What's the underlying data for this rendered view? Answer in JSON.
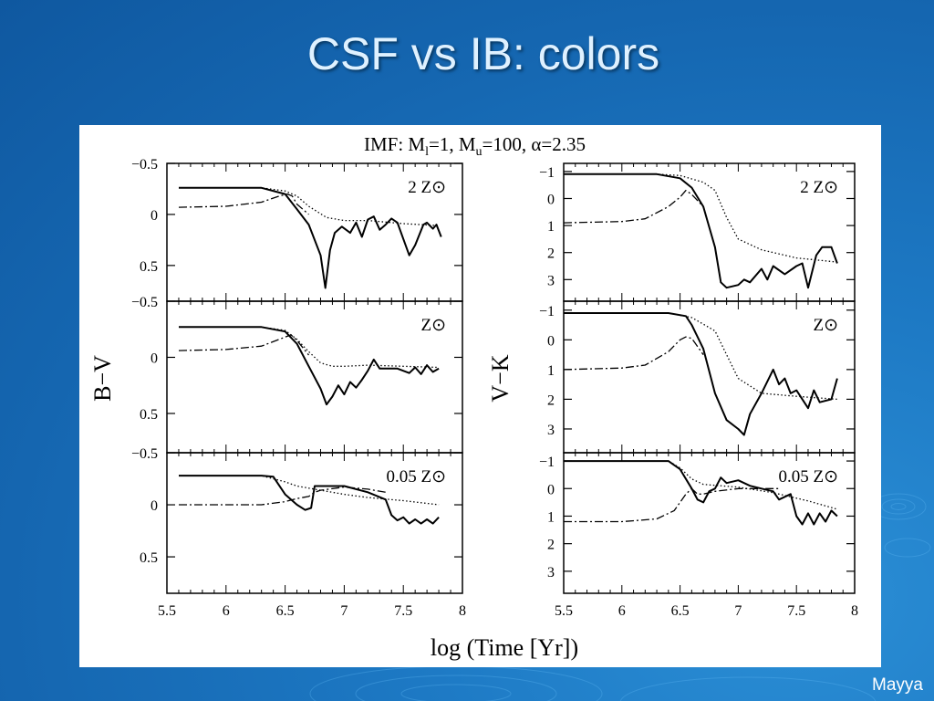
{
  "slide": {
    "title": "CSF vs IB: colors",
    "footer": "Mayya"
  },
  "chart_data": {
    "type": "line",
    "header": "IMF: M",
    "header_sub_l": "l",
    "header_mid": "=1, M",
    "header_sub_u": "u",
    "header_tail": "=100, α=2.35",
    "xlabel": "log (Time [Yr])",
    "x_ticks": [
      "5.5",
      "6",
      "6.5",
      "7",
      "7.5",
      "8"
    ],
    "xlim": [
      5.5,
      8.0
    ],
    "columns": [
      {
        "ylabel": "B−V",
        "ylim": [
          -0.5,
          0.85
        ],
        "y_ticks": [
          "−0.5",
          "0",
          "0.5"
        ],
        "y_tick_values": [
          -0.5,
          0,
          0.5
        ],
        "panels": [
          {
            "label": "2 Z⊙",
            "series": [
              {
                "style": "solid",
                "x": [
                  5.6,
                  6.3,
                  6.5,
                  6.6,
                  6.7,
                  6.8,
                  6.84,
                  6.88,
                  6.92,
                  6.98,
                  7.05,
                  7.1,
                  7.15,
                  7.2,
                  7.25,
                  7.3,
                  7.35,
                  7.4,
                  7.45,
                  7.55,
                  7.6,
                  7.67,
                  7.7,
                  7.75,
                  7.78,
                  7.82
                ],
                "y": [
                  -0.26,
                  -0.26,
                  -0.2,
                  -0.05,
                  0.1,
                  0.4,
                  0.72,
                  0.35,
                  0.18,
                  0.12,
                  0.18,
                  0.08,
                  0.22,
                  0.05,
                  0.02,
                  0.15,
                  0.1,
                  0.04,
                  0.08,
                  0.4,
                  0.3,
                  0.1,
                  0.08,
                  0.14,
                  0.1,
                  0.22
                ]
              },
              {
                "style": "dotted",
                "x": [
                  5.6,
                  6.3,
                  6.5,
                  6.6,
                  6.7,
                  6.85,
                  7.0,
                  7.2,
                  7.5,
                  7.8
                ],
                "y": [
                  -0.26,
                  -0.26,
                  -0.23,
                  -0.18,
                  -0.08,
                  0.03,
                  0.06,
                  0.06,
                  0.09,
                  0.11
                ]
              },
              {
                "style": "dashdot",
                "x": [
                  5.6,
                  6.0,
                  6.3,
                  6.45,
                  6.52,
                  6.56,
                  6.6,
                  6.7
                ],
                "y": [
                  -0.07,
                  -0.08,
                  -0.12,
                  -0.18,
                  -0.2,
                  -0.18,
                  -0.1,
                  0.0
                ]
              }
            ]
          },
          {
            "label": "Z⊙",
            "series": [
              {
                "style": "solid",
                "x": [
                  5.6,
                  6.3,
                  6.5,
                  6.6,
                  6.7,
                  6.8,
                  6.85,
                  6.9,
                  6.95,
                  7.0,
                  7.05,
                  7.1,
                  7.15,
                  7.2,
                  7.25,
                  7.3,
                  7.35,
                  7.45,
                  7.55,
                  7.6,
                  7.65,
                  7.7,
                  7.75,
                  7.8
                ],
                "y": [
                  -0.27,
                  -0.27,
                  -0.23,
                  -0.12,
                  0.08,
                  0.28,
                  0.42,
                  0.35,
                  0.25,
                  0.33,
                  0.22,
                  0.27,
                  0.2,
                  0.12,
                  0.02,
                  0.1,
                  0.1,
                  0.1,
                  0.14,
                  0.09,
                  0.15,
                  0.07,
                  0.13,
                  0.1
                ]
              },
              {
                "style": "dotted",
                "x": [
                  5.6,
                  6.3,
                  6.5,
                  6.6,
                  6.7,
                  6.8,
                  6.9,
                  7.0,
                  7.2,
                  7.5,
                  7.8
                ],
                "y": [
                  -0.27,
                  -0.27,
                  -0.24,
                  -0.16,
                  -0.05,
                  0.05,
                  0.08,
                  0.08,
                  0.07,
                  0.08,
                  0.09
                ]
              },
              {
                "style": "dashdot",
                "x": [
                  5.6,
                  6.0,
                  6.3,
                  6.5,
                  6.55,
                  6.6,
                  6.7
                ],
                "y": [
                  -0.06,
                  -0.07,
                  -0.1,
                  -0.18,
                  -0.2,
                  -0.15,
                  -0.02
                ]
              }
            ]
          },
          {
            "label": "0.05 Z⊙",
            "series": [
              {
                "style": "solid",
                "x": [
                  5.6,
                  6.3,
                  6.4,
                  6.5,
                  6.6,
                  6.67,
                  6.72,
                  6.75,
                  6.8,
                  7.0,
                  7.2,
                  7.35,
                  7.4,
                  7.45,
                  7.5,
                  7.55,
                  7.6,
                  7.65,
                  7.7,
                  7.75,
                  7.8
                ],
                "y": [
                  -0.28,
                  -0.28,
                  -0.27,
                  -0.1,
                  0.0,
                  0.05,
                  0.03,
                  -0.18,
                  -0.18,
                  -0.18,
                  -0.12,
                  -0.05,
                  0.1,
                  0.15,
                  0.12,
                  0.18,
                  0.14,
                  0.18,
                  0.14,
                  0.18,
                  0.12
                ]
              },
              {
                "style": "dotted",
                "x": [
                  5.6,
                  6.3,
                  6.5,
                  6.6,
                  6.8,
                  7.0,
                  7.2,
                  7.5,
                  7.8
                ],
                "y": [
                  -0.28,
                  -0.28,
                  -0.22,
                  -0.18,
                  -0.14,
                  -0.1,
                  -0.07,
                  -0.04,
                  0.0
                ]
              },
              {
                "style": "dashdot",
                "x": [
                  5.6,
                  6.3,
                  6.5,
                  6.6,
                  6.7,
                  6.75,
                  6.8,
                  7.0,
                  7.2,
                  7.35
                ],
                "y": [
                  0.0,
                  0.0,
                  -0.03,
                  -0.06,
                  -0.08,
                  -0.12,
                  -0.14,
                  -0.17,
                  -0.15,
                  -0.12
                ]
              }
            ]
          }
        ]
      },
      {
        "ylabel": "V−K",
        "ylim": [
          -1.3,
          3.8
        ],
        "y_ticks": [
          "−1",
          "0",
          "1",
          "2",
          "3"
        ],
        "y_tick_values": [
          -1,
          0,
          1,
          2,
          3
        ],
        "panels": [
          {
            "label": "2 Z⊙",
            "series": [
              {
                "style": "solid",
                "x": [
                  5.5,
                  6.3,
                  6.5,
                  6.6,
                  6.7,
                  6.8,
                  6.85,
                  6.9,
                  7.0,
                  7.05,
                  7.1,
                  7.2,
                  7.25,
                  7.3,
                  7.4,
                  7.5,
                  7.55,
                  7.6,
                  7.67,
                  7.72,
                  7.8,
                  7.85
                ],
                "y": [
                  -0.9,
                  -0.9,
                  -0.75,
                  -0.4,
                  0.3,
                  1.8,
                  3.1,
                  3.3,
                  3.2,
                  3.0,
                  3.1,
                  2.6,
                  3.0,
                  2.5,
                  2.8,
                  2.5,
                  2.4,
                  3.3,
                  2.1,
                  1.8,
                  1.8,
                  2.4
                ]
              },
              {
                "style": "dotted",
                "x": [
                  5.5,
                  6.3,
                  6.5,
                  6.7,
                  6.8,
                  6.9,
                  7.0,
                  7.2,
                  7.5,
                  7.85
                ],
                "y": [
                  -0.9,
                  -0.9,
                  -0.85,
                  -0.6,
                  -0.3,
                  0.7,
                  1.5,
                  1.9,
                  2.2,
                  2.35
                ]
              },
              {
                "style": "dashdot",
                "x": [
                  5.5,
                  6.0,
                  6.2,
                  6.4,
                  6.5,
                  6.55,
                  6.6,
                  6.7
                ],
                "y": [
                  0.9,
                  0.85,
                  0.75,
                  0.3,
                  -0.05,
                  -0.3,
                  -0.15,
                  0.3
                ]
              }
            ]
          },
          {
            "label": "Z⊙",
            "series": [
              {
                "style": "solid",
                "x": [
                  5.5,
                  6.4,
                  6.55,
                  6.6,
                  6.7,
                  6.8,
                  6.9,
                  7.0,
                  7.05,
                  7.1,
                  7.2,
                  7.3,
                  7.35,
                  7.4,
                  7.45,
                  7.5,
                  7.6,
                  7.65,
                  7.7,
                  7.8,
                  7.85
                ],
                "y": [
                  -0.9,
                  -0.9,
                  -0.8,
                  -0.5,
                  0.3,
                  1.8,
                  2.7,
                  3.0,
                  3.2,
                  2.5,
                  1.8,
                  1.0,
                  1.5,
                  1.3,
                  1.8,
                  1.7,
                  2.3,
                  1.7,
                  2.1,
                  2.0,
                  1.3
                ]
              },
              {
                "style": "dotted",
                "x": [
                  5.5,
                  6.4,
                  6.6,
                  6.8,
                  6.9,
                  7.0,
                  7.2,
                  7.5,
                  7.85
                ],
                "y": [
                  -0.9,
                  -0.9,
                  -0.75,
                  -0.3,
                  0.5,
                  1.3,
                  1.8,
                  1.9,
                  2.0
                ]
              },
              {
                "style": "dashdot",
                "x": [
                  5.5,
                  6.0,
                  6.2,
                  6.4,
                  6.5,
                  6.55,
                  6.6,
                  6.7
                ],
                "y": [
                  1.0,
                  0.95,
                  0.85,
                  0.4,
                  0.0,
                  -0.1,
                  -0.05,
                  0.5
                ]
              }
            ]
          },
          {
            "label": "0.05 Z⊙",
            "series": [
              {
                "style": "solid",
                "x": [
                  5.5,
                  6.4,
                  6.5,
                  6.6,
                  6.65,
                  6.7,
                  6.75,
                  6.8,
                  6.85,
                  6.9,
                  7.0,
                  7.1,
                  7.2,
                  7.3,
                  7.35,
                  7.45,
                  7.5,
                  7.55,
                  7.6,
                  7.65,
                  7.7,
                  7.75,
                  7.8,
                  7.85
                ],
                "y": [
                  -1.0,
                  -1.0,
                  -0.7,
                  0.0,
                  0.4,
                  0.5,
                  0.1,
                  0.0,
                  -0.4,
                  -0.2,
                  -0.3,
                  -0.1,
                  0.0,
                  0.1,
                  0.4,
                  0.2,
                  1.0,
                  1.3,
                  0.9,
                  1.3,
                  0.9,
                  1.2,
                  0.8,
                  1.0
                ]
              },
              {
                "style": "dotted",
                "x": [
                  5.5,
                  6.4,
                  6.5,
                  6.6,
                  6.7,
                  7.0,
                  7.3,
                  7.6,
                  7.85
                ],
                "y": [
                  -1.0,
                  -1.0,
                  -0.75,
                  -0.35,
                  -0.15,
                  -0.05,
                  0.15,
                  0.45,
                  0.75
                ]
              },
              {
                "style": "dashdot",
                "x": [
                  5.5,
                  6.0,
                  6.3,
                  6.45,
                  6.55,
                  6.6,
                  6.65,
                  6.7,
                  6.8,
                  7.0,
                  7.2,
                  7.35
                ],
                "y": [
                  1.2,
                  1.2,
                  1.1,
                  0.8,
                  0.2,
                  0.0,
                  0.2,
                  0.2,
                  0.1,
                  0.0,
                  0.0,
                  0.0
                ]
              }
            ]
          }
        ]
      }
    ]
  }
}
